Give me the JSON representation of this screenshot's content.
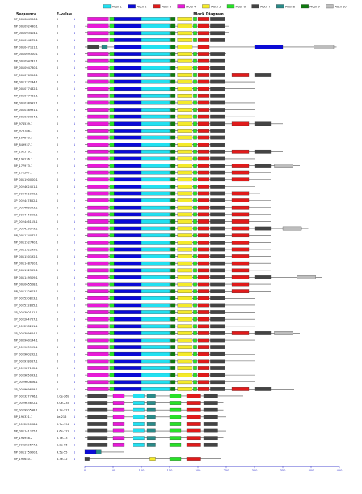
{
  "legend": [
    {
      "label": "Motif 1",
      "color": "#22e0f0"
    },
    {
      "label": "Motif 2",
      "color": "#0b0bd6"
    },
    {
      "label": "Motif 3",
      "color": "#e01b1b"
    },
    {
      "label": "Motif 4",
      "color": "#e81ad8"
    },
    {
      "label": "Motif 5",
      "color": "#f4ea2a"
    },
    {
      "label": "Motif 6",
      "color": "#28e028"
    },
    {
      "label": "Motif 7",
      "color": "#444444"
    },
    {
      "label": "Motif 8",
      "color": "#2a8a88"
    },
    {
      "label": "Motif 9",
      "color": "#0f7a0f"
    },
    {
      "label": "Motif 10",
      "color": "#bdbdbd"
    }
  ],
  "headers": {
    "sequence": "Sequence",
    "evalue": "E-value",
    "diagram": "Block Diagram"
  },
  "axis": {
    "ticks": [
      0,
      50,
      100,
      150,
      200,
      250,
      300,
      350,
      400,
      450
    ],
    "max": 450
  },
  "rows": [
    {
      "name": "NP_001084306.1",
      "evalue": "0",
      "count": 1,
      "length": 255
    },
    {
      "name": "NP_001092430.1",
      "evalue": "0",
      "count": 1,
      "length": 255
    },
    {
      "name": "NP_001093404.1",
      "evalue": "0",
      "count": 1,
      "length": 255
    },
    {
      "name": "NP_001094275.1",
      "evalue": "0",
      "count": 1,
      "length": 245
    },
    {
      "name": "NP_001047111.1",
      "evalue": "0",
      "count": 1,
      "length": 445
    },
    {
      "name": "NP_001069300.1",
      "evalue": "0",
      "count": 1,
      "length": 250
    },
    {
      "name": "NP_001094741.1",
      "evalue": "0",
      "count": 1,
      "length": 245
    },
    {
      "name": "NP_001094780.1",
      "evalue": "0",
      "count": 1,
      "length": 245
    },
    {
      "name": "NP_001076356.1",
      "evalue": "0",
      "count": 1,
      "length": 360
    },
    {
      "name": "NP_001127244.1",
      "evalue": "0",
      "count": 1,
      "length": 300
    },
    {
      "name": "NP_001077482.1",
      "evalue": "0",
      "count": 1,
      "length": 300
    },
    {
      "name": "NP_001077481.1",
      "evalue": "0",
      "count": 1,
      "length": 300
    },
    {
      "name": "NP_001038992.1",
      "evalue": "0",
      "count": 1,
      "length": 300
    },
    {
      "name": "NP_001038991.1",
      "evalue": "0",
      "count": 1,
      "length": 300
    },
    {
      "name": "NP_001039004.1",
      "evalue": "0",
      "count": 1,
      "length": 300
    },
    {
      "name": "NP_974539.1",
      "evalue": "0",
      "count": 1,
      "length": 350
    },
    {
      "name": "NP_973786.1",
      "evalue": "0",
      "count": 1,
      "length": 245
    },
    {
      "name": "NP_197573.1",
      "evalue": "0",
      "count": 1,
      "length": 245
    },
    {
      "name": "NP_849937.1",
      "evalue": "0",
      "count": 1,
      "length": 245
    },
    {
      "name": "NP_192579.1",
      "evalue": "0",
      "count": 1,
      "length": 350
    },
    {
      "name": "NP_195236.1",
      "evalue": "0",
      "count": 1,
      "length": 300
    },
    {
      "name": "NP_177973.1",
      "evalue": "0",
      "count": 1,
      "length": 380
    },
    {
      "name": "NP_172207.1",
      "evalue": "0",
      "count": 1,
      "length": 330
    },
    {
      "name": "NP_001190000.1",
      "evalue": "0",
      "count": 1,
      "length": 330
    },
    {
      "name": "XP_002462451.1",
      "evalue": "0",
      "count": 1,
      "length": 300
    },
    {
      "name": "XP_002461930.1",
      "evalue": "0",
      "count": 1,
      "length": 310
    },
    {
      "name": "XP_002447862.1",
      "evalue": "0",
      "count": 1,
      "length": 330
    },
    {
      "name": "XP_002468033.1",
      "evalue": "0",
      "count": 1,
      "length": 330
    },
    {
      "name": "XP_002444020.1",
      "evalue": "0",
      "count": 1,
      "length": 330
    },
    {
      "name": "XP_002446115.1",
      "evalue": "0",
      "count": 1,
      "length": 330
    },
    {
      "name": "XP_002453079.1",
      "evalue": "0",
      "count": 1,
      "length": 395
    },
    {
      "name": "NP_001174062.1",
      "evalue": "0",
      "count": 1,
      "length": 330
    },
    {
      "name": "NP_001152740.1",
      "evalue": "0",
      "count": 1,
      "length": 330
    },
    {
      "name": "NP_001152249.1",
      "evalue": "0",
      "count": 1,
      "length": 330
    },
    {
      "name": "NP_001150192.1",
      "evalue": "0",
      "count": 1,
      "length": 330
    },
    {
      "name": "NP_001148710.1",
      "evalue": "0",
      "count": 1,
      "length": 330
    },
    {
      "name": "NP_001132555.1",
      "evalue": "0",
      "count": 1,
      "length": 330
    },
    {
      "name": "NP_001149509.1",
      "evalue": "0",
      "count": 1,
      "length": 420
    },
    {
      "name": "NP_001065508.1",
      "evalue": "0",
      "count": 1,
      "length": 330
    },
    {
      "name": "NP_001132603.1",
      "evalue": "0",
      "count": 1,
      "length": 330
    },
    {
      "name": "XP_002530823.1",
      "evalue": "0",
      "count": 1,
      "length": 300
    },
    {
      "name": "XP_002512865.1",
      "evalue": "0",
      "count": 1,
      "length": 300
    },
    {
      "name": "XP_002300161.1",
      "evalue": "0",
      "count": 1,
      "length": 300
    },
    {
      "name": "XP_002264767.1",
      "evalue": "0",
      "count": 1,
      "length": 300
    },
    {
      "name": "XP_002278281.1",
      "evalue": "0",
      "count": 1,
      "length": 300
    },
    {
      "name": "XP_002309664.1",
      "evalue": "0",
      "count": 1,
      "length": 380
    },
    {
      "name": "NP_002960144.1",
      "evalue": "0",
      "count": 1,
      "length": 300
    },
    {
      "name": "XP_002963995.1",
      "evalue": "0",
      "count": 1,
      "length": 300
    },
    {
      "name": "XP_002960232.1",
      "evalue": "0",
      "count": 1,
      "length": 300
    },
    {
      "name": "XP_002978067.1",
      "evalue": "0",
      "count": 1,
      "length": 300
    },
    {
      "name": "XP_002987132.1",
      "evalue": "0",
      "count": 1,
      "length": 300
    },
    {
      "name": "XP_002965033.1",
      "evalue": "0",
      "count": 1,
      "length": 300
    },
    {
      "name": "XP_002960806.1",
      "evalue": "0",
      "count": 1,
      "length": 300
    },
    {
      "name": "XP_002969669.1",
      "evalue": "0",
      "count": 1,
      "length": 370
    },
    {
      "name": "XP_002327746.1",
      "evalue": "2.0e-269",
      "count": 1,
      "length": 280
    },
    {
      "name": "XP_002963622.1",
      "evalue": "3.0e-235",
      "count": 1,
      "length": 245
    },
    {
      "name": "XP_002990598.1",
      "evalue": "3.3e-227",
      "count": 1,
      "length": 245
    },
    {
      "name": "NP_195321.1",
      "evalue": "1e-216",
      "count": 1,
      "length": 250
    },
    {
      "name": "XP_002265038.1",
      "evalue": "3.7e-194",
      "count": 1,
      "length": 250
    },
    {
      "name": "NP_001141105.1",
      "evalue": "9.6e-122",
      "count": 1,
      "length": 250
    },
    {
      "name": "NP_194958.2",
      "evalue": "5.7e-73",
      "count": 1,
      "length": 245
    },
    {
      "name": "XP_002262677.1",
      "evalue": "1.2e-66",
      "count": 1,
      "length": 245
    },
    {
      "name": "NP_001175900.1",
      "evalue": "4.5e-55",
      "count": 1,
      "length": 70
    },
    {
      "name": "NP_190640.1",
      "evalue": "6.3e-32",
      "count": 1,
      "length": 240
    }
  ]
}
